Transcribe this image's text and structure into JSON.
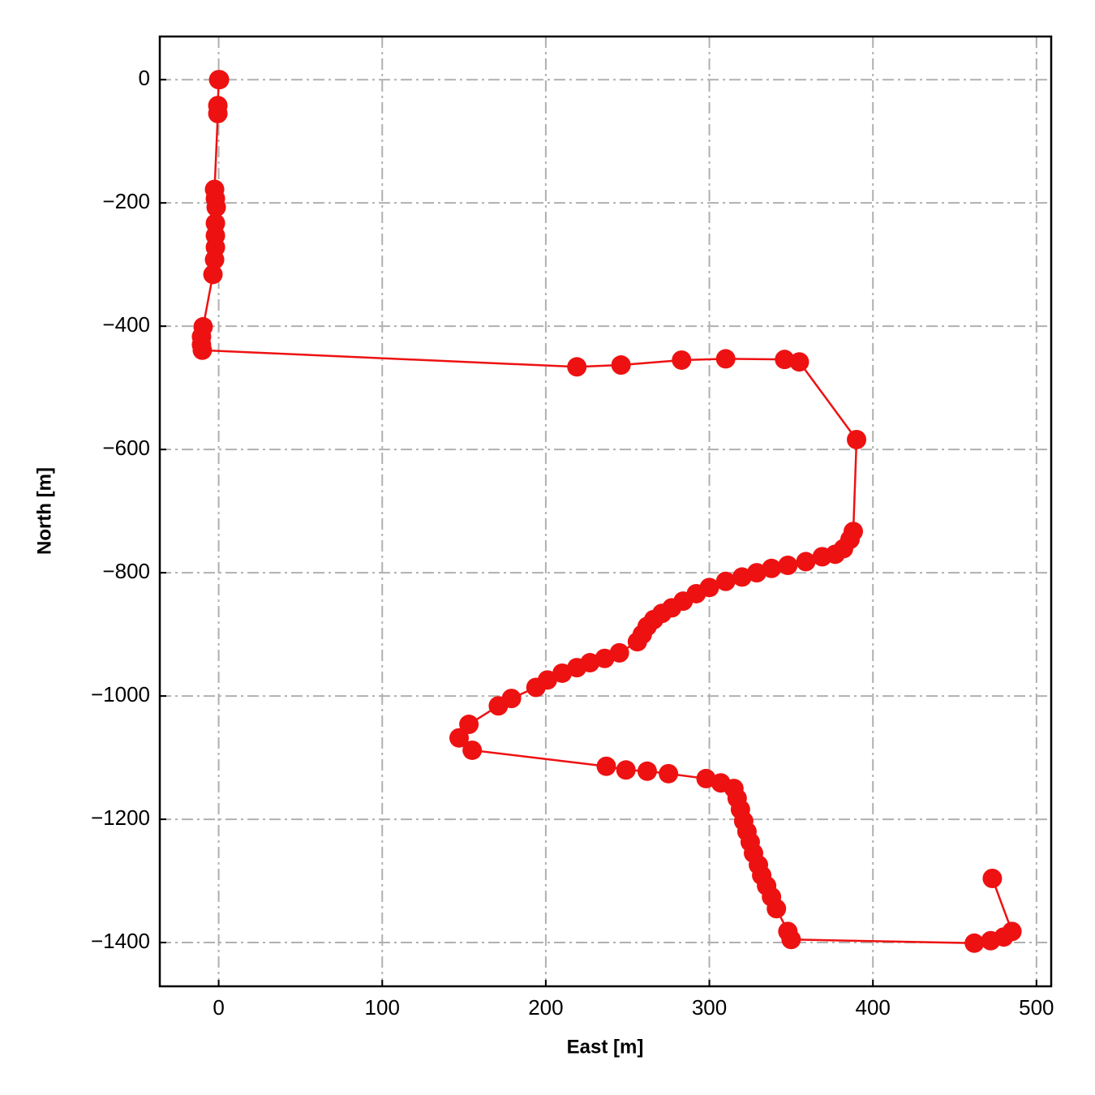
{
  "chart_data": {
    "type": "line",
    "xlabel": "East [m]",
    "ylabel": "North [m]",
    "xlim": [
      -36,
      509
    ],
    "ylim": [
      -1471,
      70
    ],
    "xticks": [
      0,
      100,
      200,
      300,
      400,
      500
    ],
    "yticks": [
      0,
      {
        "value": -200,
        "label": "−200"
      },
      {
        "value": -400,
        "label": "−400"
      },
      {
        "value": -600,
        "label": "−600"
      },
      {
        "value": -800,
        "label": "−800"
      },
      {
        "value": -1000,
        "label": "−1000"
      },
      {
        "value": -1200,
        "label": "−1200"
      },
      {
        "value": -1400,
        "label": "−1400"
      }
    ],
    "grid": true,
    "markers": true,
    "x": [
      0.5,
      0,
      -0.5,
      -0.5,
      -2.5,
      -2,
      -1.5,
      -2,
      -2,
      -2,
      -2.5,
      -3.5,
      -9.5,
      -10.5,
      -10.5,
      -10,
      219,
      246,
      283,
      310,
      346,
      355,
      390,
      388,
      386,
      382,
      377,
      369,
      359,
      348,
      338,
      329,
      320,
      310,
      300,
      292,
      284,
      277,
      271,
      266,
      262,
      259,
      256,
      245,
      236,
      227,
      219,
      210,
      201,
      194,
      179,
      171,
      153,
      147,
      155,
      237,
      249,
      262,
      275,
      298,
      307,
      315,
      317,
      319,
      321,
      323,
      325,
      327,
      330,
      332,
      335,
      338,
      341,
      348,
      350,
      462,
      472,
      480,
      485,
      473
    ],
    "series": [
      {
        "color": "#ee1111",
        "values": [
          0,
          0,
          -42,
          -55,
          -178,
          -193,
          -207,
          -233,
          -253,
          -272,
          -292,
          -316,
          -401,
          -417,
          -430,
          -439,
          -466,
          -463,
          -455,
          -453,
          -454,
          -458,
          -584,
          -733,
          -746,
          -761,
          -770,
          -774,
          -782,
          -788,
          -793,
          -800,
          -807,
          -814,
          -824,
          -834,
          -846,
          -857,
          -866,
          -876,
          -887,
          -900,
          -912,
          -930,
          -939,
          -946,
          -954,
          -963,
          -974,
          -986,
          -1004,
          -1016,
          -1046,
          -1068,
          -1088,
          -1114,
          -1120,
          -1122,
          -1126,
          -1134,
          -1141,
          -1150,
          -1166,
          -1184,
          -1203,
          -1220,
          -1237,
          -1255,
          -1274,
          -1291,
          -1308,
          -1326,
          -1345,
          -1382,
          -1395,
          -1401,
          -1397,
          -1391,
          -1382,
          -1296
        ]
      }
    ]
  }
}
